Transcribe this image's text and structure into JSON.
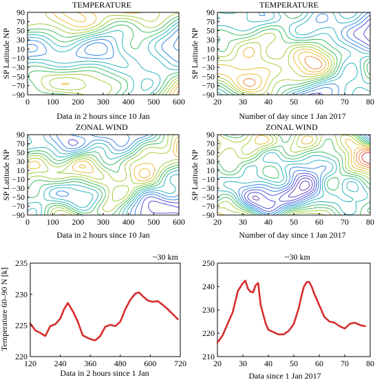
{
  "chart_data": [
    {
      "type": "heatmap",
      "title": "TEMPERATURE",
      "xlabel": "Data in 2 hours since 10 Jan",
      "ylabel": "SP Latitude  NP",
      "xlim": [
        0,
        600
      ],
      "ylim": [
        -90,
        90
      ],
      "xticks": [
        "0",
        "100",
        "200",
        "300",
        "400",
        "500",
        "600"
      ],
      "yticks": [
        "−90",
        "−70",
        "−50",
        "−30",
        "−10",
        "10",
        "30",
        "50",
        "70",
        "90"
      ]
    },
    {
      "type": "heatmap",
      "title": "TEMPERATURE",
      "xlabel": "Number of day since 1 Jan 2017",
      "ylabel": "SP  Latitude  NP",
      "xlim": [
        20,
        80
      ],
      "ylim": [
        -90,
        90
      ],
      "xticks": [
        "20",
        "30",
        "40",
        "50",
        "60",
        "70",
        "80"
      ],
      "yticks": [
        "−90",
        "−70",
        "−50",
        "−30",
        "−10",
        "10",
        "30",
        "50",
        "70",
        "90"
      ]
    },
    {
      "type": "heatmap",
      "title": "ZONAL WIND",
      "xlabel": "Data in 2 hours since 10 Jan",
      "ylabel": "SP  Latitude  NP",
      "xlim": [
        0,
        600
      ],
      "ylim": [
        -90,
        90
      ],
      "xticks": [
        "0",
        "100",
        "200",
        "300",
        "400",
        "500",
        "600"
      ],
      "yticks": [
        "−90",
        "−70",
        "−50",
        "−30",
        "−10",
        "10",
        "30",
        "50",
        "70",
        "90"
      ]
    },
    {
      "type": "heatmap",
      "title": "ZONAL WIND",
      "xlabel": "Number of day since 1 Jan 2017",
      "ylabel": "SP  Latitude  NP",
      "xlim": [
        20,
        80
      ],
      "ylim": [
        -90,
        90
      ],
      "xticks": [
        "20",
        "30",
        "40",
        "50",
        "60",
        "70",
        "80"
      ],
      "yticks": [
        "−90",
        "−70",
        "−50",
        "−30",
        "−10",
        "10",
        "30",
        "50",
        "70",
        "90"
      ]
    },
    {
      "type": "line",
      "annotation": "~30 km",
      "xlabel": "Data in 2 hours since 1 Jan",
      "ylabel": "Temperature 60–90 N [k]",
      "xlim": [
        120,
        720
      ],
      "ylim": [
        220,
        235
      ],
      "xticks": [
        "120",
        "240",
        "360",
        "480",
        "600",
        "720"
      ],
      "yticks": [
        "220",
        "225",
        "230",
        "235"
      ],
      "color": "#d62b2b",
      "x": [
        120,
        140,
        160,
        180,
        200,
        220,
        240,
        255,
        270,
        290,
        310,
        330,
        360,
        380,
        400,
        420,
        440,
        460,
        480,
        500,
        520,
        540,
        555,
        570,
        590,
        610,
        630,
        650,
        670,
        690,
        710
      ],
      "y": [
        225.3,
        224.2,
        223.8,
        223.3,
        224.9,
        225.2,
        226.1,
        227.6,
        228.6,
        227.3,
        225.6,
        223.4,
        222.8,
        222.6,
        223.3,
        224.8,
        225.1,
        224.9,
        225.6,
        227.6,
        229.1,
        230.1,
        230.3,
        229.7,
        229.0,
        228.8,
        228.9,
        228.3,
        227.6,
        226.8,
        226.0
      ]
    },
    {
      "type": "line",
      "annotation": "~30 km",
      "xlabel": "Data  since 1 Jan 2017",
      "ylabel": "",
      "xlim": [
        20,
        80
      ],
      "ylim": [
        210,
        250
      ],
      "xticks": [
        "20",
        "30",
        "40",
        "50",
        "60",
        "70",
        "80"
      ],
      "yticks": [
        "210",
        "220",
        "230",
        "240",
        "250"
      ],
      "color": "#d62b2b",
      "x": [
        20,
        22,
        24,
        26,
        28,
        30,
        31,
        32,
        33,
        34,
        35,
        36,
        37,
        38,
        39,
        40,
        42,
        44,
        46,
        48,
        50,
        52,
        53,
        54,
        55,
        56,
        57,
        58,
        60,
        62,
        64,
        66,
        68,
        70,
        72,
        74,
        76,
        78
      ],
      "y": [
        216,
        219,
        224,
        229,
        238,
        241.5,
        242.5,
        239,
        237.8,
        237.5,
        240.5,
        241.5,
        232,
        228,
        224,
        221.5,
        220.5,
        219.5,
        219.5,
        221,
        224,
        231,
        236,
        240,
        241.8,
        242,
        240,
        237,
        232,
        227,
        225,
        224.5,
        223,
        222,
        224,
        224.5,
        223.5,
        223
      ]
    }
  ]
}
